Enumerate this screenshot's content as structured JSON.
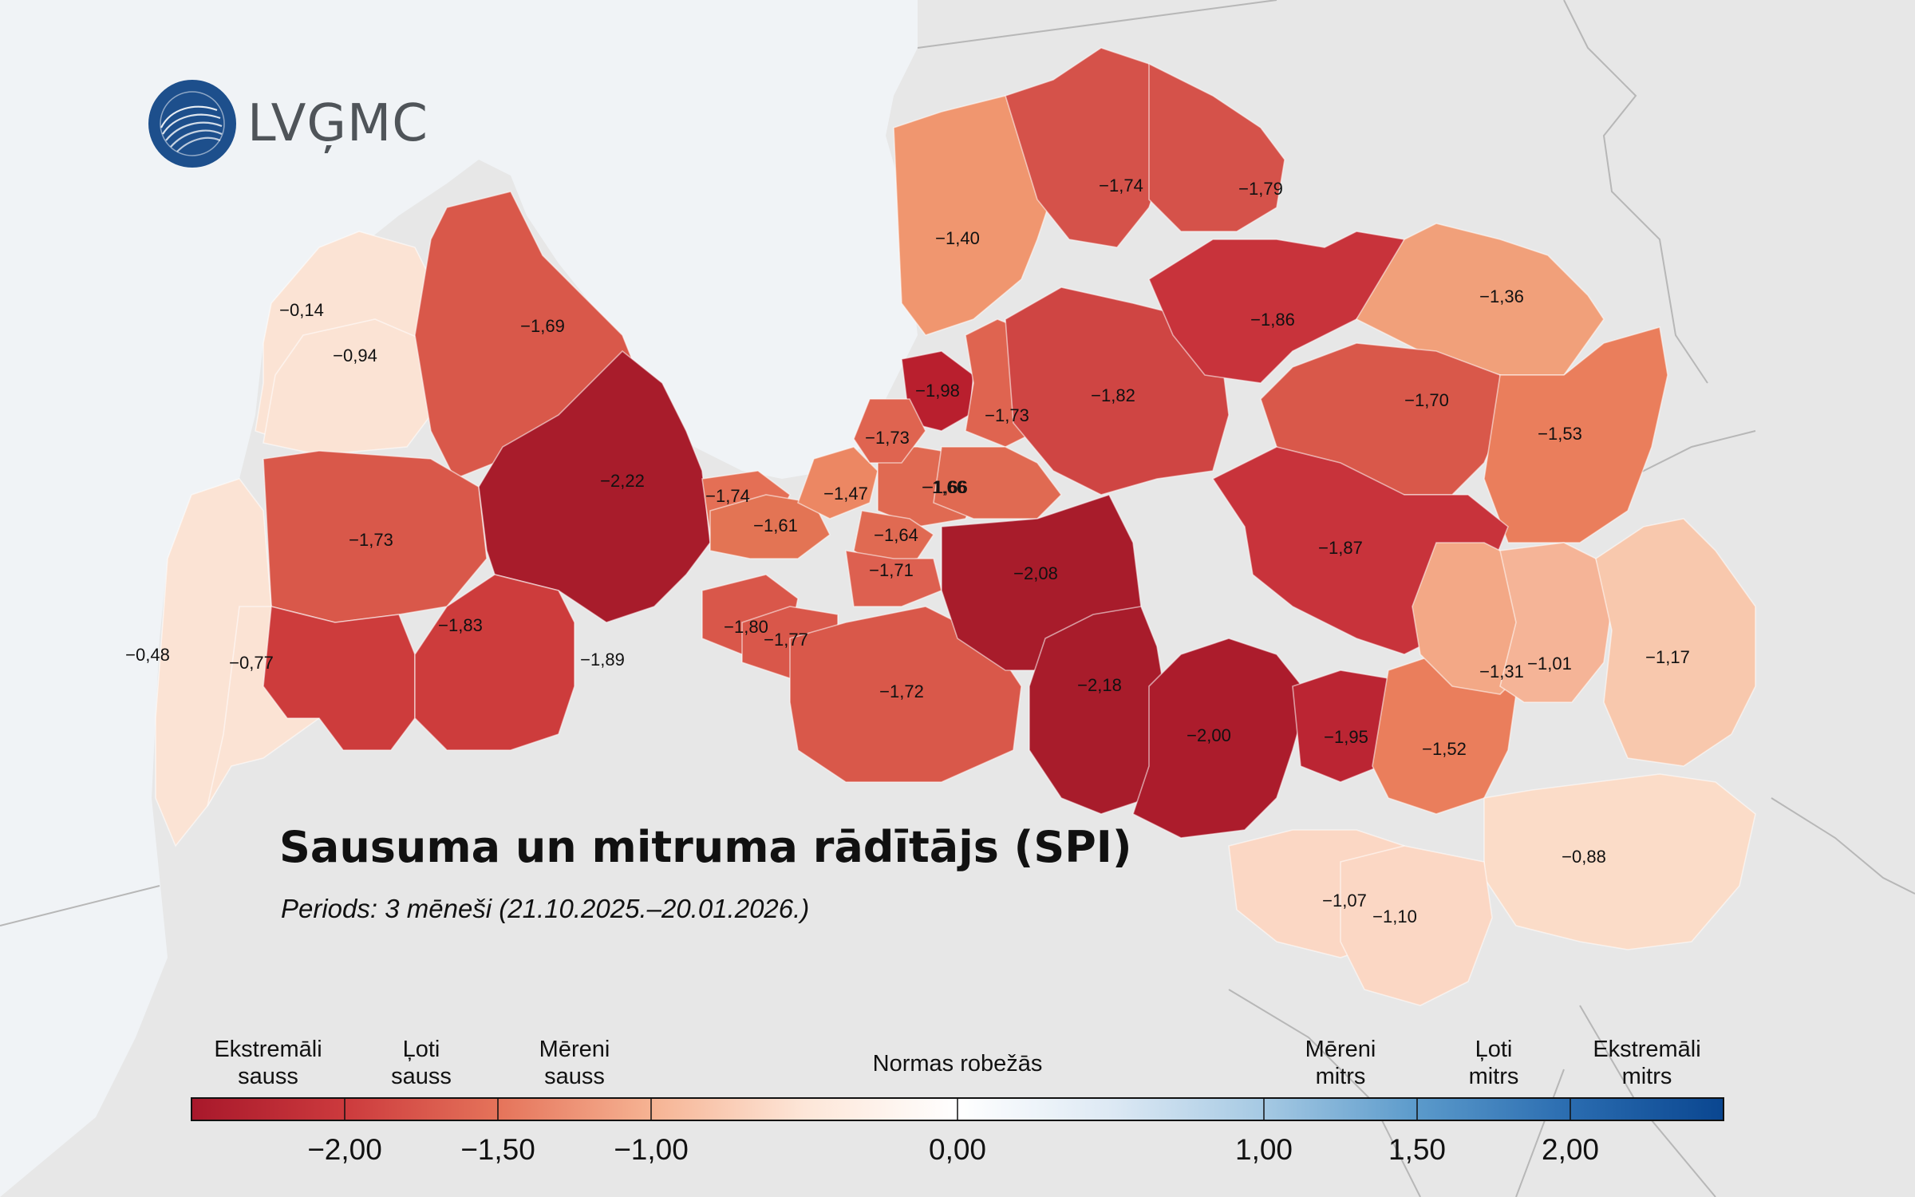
{
  "logo": {
    "text": "LVĢMC",
    "icon": "globe-wave-icon",
    "color": "#1d4f8c"
  },
  "title": "Sausuma un mitruma rādītājs (SPI)",
  "subtitle": "Periods: 3 mēneši (21.10.2025.–20.01.2026.)",
  "regions": [
    {
      "value": "−0,14",
      "color": "#fbe3d4"
    },
    {
      "value": "−0,94",
      "color": "#fbe3d4"
    },
    {
      "value": "−1,69",
      "color": "#d9584a"
    },
    {
      "value": "−1,73",
      "color": "#d9584a"
    },
    {
      "value": "−2,22",
      "color": "#a81c2b"
    },
    {
      "value": "−0,48",
      "color": "#fbe3d4"
    },
    {
      "value": "−0,77",
      "color": "#fbe3d4"
    },
    {
      "value": "−1,83",
      "color": "#cd3c3c"
    },
    {
      "value": "−1,89",
      "color": "#cd3c3c"
    },
    {
      "value": "−1,74",
      "color": "#e46f55"
    },
    {
      "value": "−1,61",
      "color": "#e37454"
    },
    {
      "value": "−1,47",
      "color": "#ec8763"
    },
    {
      "value": "−1,66",
      "color": "#e06a52"
    },
    {
      "value": "−1,64",
      "color": "#e06a52"
    },
    {
      "value": "−1,71",
      "color": "#dd6050"
    },
    {
      "value": "−1,80",
      "color": "#d9574a"
    },
    {
      "value": "−1,77",
      "color": "#d9574a"
    },
    {
      "value": "−1,72",
      "color": "#d9584a"
    },
    {
      "value": "−1,98",
      "color": "#b91f2e"
    },
    {
      "value": "−1,73",
      "color": "#df6450"
    },
    {
      "value": "−1,73",
      "color": "#df6450"
    },
    {
      "value": "−1,66",
      "color": "#e06a52"
    },
    {
      "value": "−2,08",
      "color": "#a81c2b"
    },
    {
      "value": "−1,40",
      "color": "#f0966f"
    },
    {
      "value": "−1,74",
      "color": "#d5524a"
    },
    {
      "value": "−1,79",
      "color": "#d5524a"
    },
    {
      "value": "−1,82",
      "color": "#cf4543"
    },
    {
      "value": "−1,86",
      "color": "#c8333b"
    },
    {
      "value": "−1,36",
      "color": "#f1a07a"
    },
    {
      "value": "−1,70",
      "color": "#d9584a"
    },
    {
      "value": "−1,53",
      "color": "#ea7e5c"
    },
    {
      "value": "−1,87",
      "color": "#c8333b"
    },
    {
      "value": "−2,18",
      "color": "#a81c2b"
    },
    {
      "value": "−2,00",
      "color": "#ac1c2c"
    },
    {
      "value": "−1,95",
      "color": "#bb2533"
    },
    {
      "value": "−1,52",
      "color": "#ea7e5c"
    },
    {
      "value": "−1,31",
      "color": "#f3a886"
    },
    {
      "value": "−1,01",
      "color": "#f5b497"
    },
    {
      "value": "−1,17",
      "color": "#f8c8ad"
    },
    {
      "value": "−0,88",
      "color": "#fbdcc8"
    },
    {
      "value": "−1,07",
      "color": "#fbd7c4"
    },
    {
      "value": "−1,10",
      "color": "#fbd7c4"
    }
  ],
  "legend": {
    "categories": [
      "Ekstremāli\nsauss",
      "Ļoti\nsauss",
      "Mēreni\nsauss",
      "Normas robežās",
      "Mēreni\nmitrs",
      "Ļoti\nmitrs",
      "Ekstremāli\nmitrs"
    ],
    "ticks": [
      "−2,00",
      "−1,50",
      "−1,00",
      "0,00",
      "1,00",
      "1,50",
      "2,00"
    ],
    "tick_values": [
      -2.0,
      -1.5,
      -1.0,
      0.0,
      1.0,
      1.5,
      2.0
    ],
    "range": [
      -2.5,
      2.5
    ],
    "gradient_stops": [
      "#a8182b",
      "#cc3a3d",
      "#e5735a",
      "#f6b393",
      "#fde6d8",
      "#ffffff",
      "#dde9f4",
      "#a5c9e3",
      "#5b9acb",
      "#2a6cb0",
      "#0a4690"
    ]
  }
}
